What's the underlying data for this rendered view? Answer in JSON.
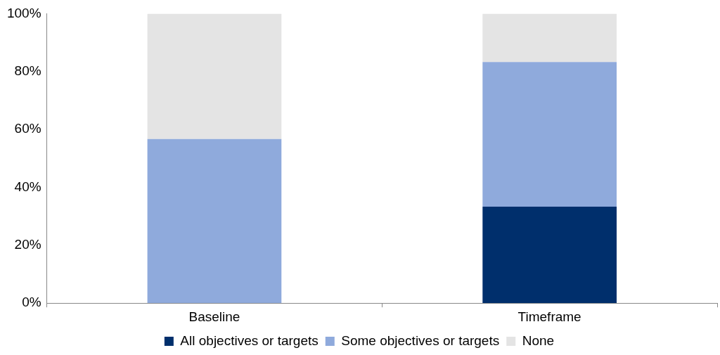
{
  "chart_data": {
    "type": "bar",
    "stacked": true,
    "categories": [
      "Baseline",
      "Timeframe"
    ],
    "series": [
      {
        "name": "All objectives or targets",
        "color": "#002f6c",
        "values": [
          0,
          33.3
        ]
      },
      {
        "name": "Some objectives or targets",
        "color": "#8faadc",
        "values": [
          56.7,
          50
        ]
      },
      {
        "name": "None",
        "color": "#e4e4e4",
        "values": [
          43.3,
          16.7
        ]
      }
    ],
    "ylim": [
      0,
      100
    ],
    "yticks": [
      {
        "value": 0,
        "label": "0%"
      },
      {
        "value": 20,
        "label": "20%"
      },
      {
        "value": 40,
        "label": "40%"
      },
      {
        "value": 60,
        "label": "60%"
      },
      {
        "value": 80,
        "label": "80%"
      },
      {
        "value": 100,
        "label": "100%"
      }
    ],
    "grid": false,
    "legend": "bottom"
  }
}
